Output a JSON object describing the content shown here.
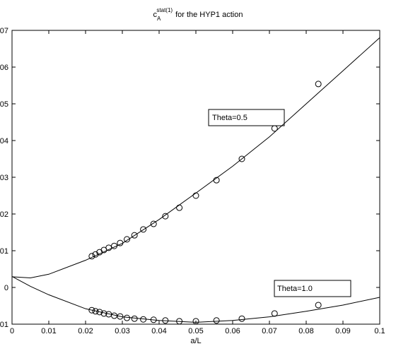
{
  "chart_data": {
    "type": "scatter",
    "title": {
      "main": "c",
      "sub": "A",
      "sup": "stat(1)",
      "rest": "for the HYP1 action"
    },
    "xlabel": "a/L",
    "xlim": [
      0,
      0.1
    ],
    "xticks": [
      0,
      0.01,
      0.02,
      0.03,
      0.04,
      0.05,
      0.06,
      0.07,
      0.08,
      0.09,
      0.1
    ],
    "ylim": [
      -0.001,
      0.007
    ],
    "yticks": [
      {
        "value": -0.001,
        "label": "01"
      },
      0,
      {
        "value": 0.001,
        "label": "01"
      },
      {
        "value": 0.002,
        "label": "02"
      },
      {
        "value": 0.003,
        "label": "03"
      },
      {
        "value": 0.004,
        "label": "04"
      },
      {
        "value": 0.005,
        "label": "05"
      },
      {
        "value": 0.006,
        "label": "06"
      },
      {
        "value": 0.007,
        "label": "07"
      }
    ],
    "annotations": [
      "Theta=0.5",
      "Theta=1.0"
    ],
    "series": [
      {
        "style": "marker",
        "color": "#000000",
        "x": [
          0.0217,
          0.0227,
          0.0238,
          0.025,
          0.0263,
          0.0278,
          0.0294,
          0.03125,
          0.0333,
          0.0357,
          0.0385,
          0.0417,
          0.0455,
          0.05,
          0.0556,
          0.0625,
          0.0714,
          0.0833
        ],
        "values": [
          0.00085,
          0.0009,
          0.00096,
          0.00102,
          0.00108,
          0.00113,
          0.00121,
          0.00131,
          0.00142,
          0.00158,
          0.00173,
          0.00194,
          0.00217,
          0.0025,
          0.00292,
          0.0035,
          0.00433,
          0.00554
        ]
      },
      {
        "style": "marker",
        "color": "#000000",
        "x": [
          0.0217,
          0.0227,
          0.0238,
          0.025,
          0.0263,
          0.0278,
          0.0294,
          0.03125,
          0.0333,
          0.0357,
          0.0385,
          0.0417,
          0.0455,
          0.05,
          0.0556,
          0.0625,
          0.0714,
          0.0833
        ],
        "values": [
          -0.00062,
          -0.00065,
          -0.00067,
          -0.00071,
          -0.00073,
          -0.00077,
          -0.00079,
          -0.00083,
          -0.00085,
          -0.00087,
          -0.00088,
          -0.0009,
          -0.00092,
          -0.00092,
          -0.0009,
          -0.00085,
          -0.00071,
          -0.00048
        ]
      },
      {
        "style": "line",
        "color": "#000000",
        "x": [
          0,
          0.005,
          0.01,
          0.02,
          0.03,
          0.04,
          0.05,
          0.06,
          0.07,
          0.08,
          0.09,
          0.1
        ],
        "values": [
          0.00029,
          0.00026,
          0.00036,
          0.00074,
          0.0012,
          0.00185,
          0.00257,
          0.0033,
          0.0041,
          0.005,
          0.0059,
          0.0068
        ]
      },
      {
        "style": "line",
        "color": "#000000",
        "x": [
          0,
          0.005,
          0.01,
          0.02,
          0.03,
          0.04,
          0.05,
          0.06,
          0.07,
          0.08,
          0.09,
          0.1
        ],
        "values": [
          0.0003,
          3e-05,
          -0.0002,
          -0.00058,
          -0.0008,
          -0.0009,
          -0.00095,
          -0.0009,
          -0.0008,
          -0.00065,
          -0.00048,
          -0.00027
        ]
      }
    ]
  }
}
